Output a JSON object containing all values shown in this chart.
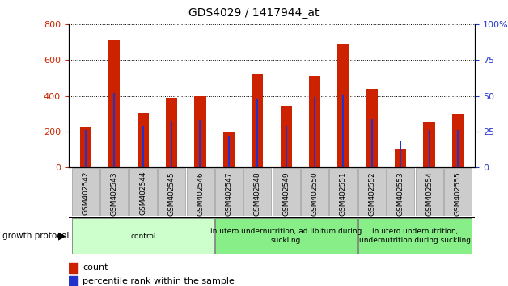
{
  "title": "GDS4029 / 1417944_at",
  "samples": [
    "GSM402542",
    "GSM402543",
    "GSM402544",
    "GSM402545",
    "GSM402546",
    "GSM402547",
    "GSM402548",
    "GSM402549",
    "GSM402550",
    "GSM402551",
    "GSM402552",
    "GSM402553",
    "GSM402554",
    "GSM402555"
  ],
  "count_values": [
    225,
    710,
    305,
    390,
    400,
    200,
    520,
    345,
    510,
    690,
    440,
    105,
    255,
    300
  ],
  "percentile_values": [
    26,
    52,
    29,
    32,
    33,
    22,
    48,
    29,
    49,
    51,
    34,
    18,
    26,
    26
  ],
  "bar_color": "#cc2200",
  "percentile_color": "#2233cc",
  "ylim_left": [
    0,
    800
  ],
  "ylim_right": [
    0,
    100
  ],
  "yticks_left": [
    0,
    200,
    400,
    600,
    800
  ],
  "yticks_right": [
    0,
    25,
    50,
    75,
    100
  ],
  "groups": [
    {
      "label": "control",
      "start": 0,
      "end": 5,
      "color": "#ccffcc"
    },
    {
      "label": "in utero undernutrition, ad libitum during\nsuckling",
      "start": 5,
      "end": 10,
      "color": "#88ee88"
    },
    {
      "label": "in utero undernutrition,\nundernutrition during suckling",
      "start": 10,
      "end": 14,
      "color": "#88ee88"
    }
  ],
  "group_protocol_label": "growth protocol",
  "legend_count_label": "count",
  "legend_percentile_label": "percentile rank within the sample",
  "bar_color_legend": "#cc2200",
  "percentile_color_legend": "#2233cc",
  "bar_width": 0.4,
  "grid_color": "#000000",
  "tick_label_color_left": "#cc2200",
  "tick_label_color_right": "#2233cc",
  "xtick_bg_color": "#cccccc",
  "xtick_border_color": "#999999"
}
